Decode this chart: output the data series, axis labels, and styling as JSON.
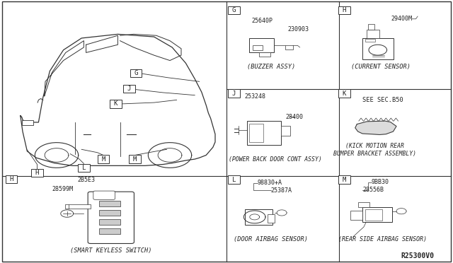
{
  "bg_color": "#ffffff",
  "line_color": "#333333",
  "text_color": "#222222",
  "part_number": "R25300V0",
  "sections": {
    "G": {
      "label": "G",
      "part_name": "(BUZZER ASSY)",
      "part_numbers": [
        "25640P",
        "230903"
      ]
    },
    "H": {
      "label": "H",
      "part_name": "(CURRENT SENSOR)",
      "part_numbers": [
        "29400M"
      ]
    },
    "J": {
      "label": "J",
      "part_name": "(POWER BACK DOOR CONT ASSY)",
      "part_numbers": [
        "253248",
        "28400"
      ]
    },
    "K": {
      "label": "K",
      "part_name": "(KICK MOTION REAR\nBUMPER BRACKET ASSEMBLY)",
      "part_numbers": [
        "SEE SEC.B50"
      ]
    },
    "L": {
      "label": "L",
      "part_name": "(DOOR AIRBAG SENSOR)",
      "part_numbers": [
        "98830+A",
        "25387A"
      ]
    },
    "M": {
      "label": "M",
      "part_name": "(REAR SIDE AIRBAG SENSOR)",
      "part_numbers": [
        "9BB30",
        "28556B"
      ]
    }
  }
}
